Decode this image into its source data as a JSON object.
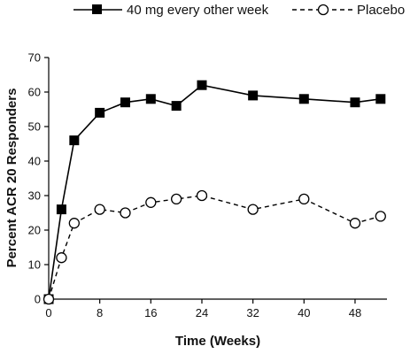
{
  "chart_data": {
    "type": "line",
    "title": "",
    "xlabel": "Time (Weeks)",
    "ylabel": "Percent ACR 20 Responders",
    "xlim": [
      0,
      53
    ],
    "ylim": [
      0,
      70
    ],
    "x_ticks": [
      0,
      8,
      16,
      24,
      32,
      40,
      48
    ],
    "y_ticks": [
      0,
      10,
      20,
      30,
      40,
      50,
      60,
      70
    ],
    "x_tick_labels": [
      "0",
      "8",
      "16",
      "24",
      "32",
      "40",
      "48"
    ],
    "y_tick_labels": [
      "0",
      "10",
      "20",
      "30",
      "40",
      "50",
      "60",
      "70"
    ],
    "grid": false,
    "legend_position": "top",
    "series": [
      {
        "name": "40 mg every other week",
        "line_style": "solid",
        "marker": "filled-square",
        "color": "#000000",
        "x": [
          0,
          2,
          4,
          8,
          12,
          16,
          20,
          24,
          32,
          40,
          48,
          52
        ],
        "y": [
          0,
          26,
          46,
          54,
          57,
          58,
          56,
          62,
          59,
          58,
          57,
          58
        ]
      },
      {
        "name": "Placebo",
        "line_style": "dashed",
        "marker": "open-circle",
        "color": "#000000",
        "x": [
          0,
          2,
          4,
          8,
          12,
          16,
          20,
          24,
          32,
          40,
          48,
          52
        ],
        "y": [
          0,
          12,
          22,
          26,
          25,
          28,
          29,
          30,
          26,
          29,
          22,
          24
        ]
      }
    ]
  }
}
